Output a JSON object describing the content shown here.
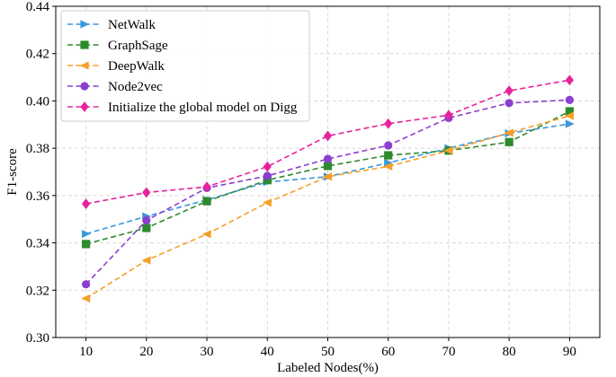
{
  "chart_data": {
    "type": "line",
    "title": "",
    "xlabel": "Labeled Nodes(%)",
    "ylabel": "F1-score",
    "x": [
      10,
      20,
      30,
      40,
      50,
      60,
      70,
      80,
      90
    ],
    "xticks": [
      "10",
      "20",
      "30",
      "40",
      "50",
      "60",
      "70",
      "80",
      "90"
    ],
    "yticks": [
      "0.30",
      "0.32",
      "0.34",
      "0.36",
      "0.38",
      "0.40",
      "0.42",
      "0.44"
    ],
    "xlim": [
      5,
      95
    ],
    "ylim": [
      0.3,
      0.44
    ],
    "grid": true,
    "legend_position": "top-left",
    "series": [
      {
        "name": "NetWalk",
        "color": "#3c97dc",
        "marker": "triangle-right",
        "values": [
          0.3438,
          0.3512,
          0.3582,
          0.3657,
          0.368,
          0.3738,
          0.38,
          0.3863,
          0.3903
        ]
      },
      {
        "name": "GraphSage",
        "color": "#2d8a2d",
        "marker": "square",
        "values": [
          0.3395,
          0.3463,
          0.3576,
          0.3665,
          0.3725,
          0.377,
          0.379,
          0.3826,
          0.3956
        ]
      },
      {
        "name": "DeepWalk",
        "color": "#f5a02a",
        "marker": "triangle-left",
        "values": [
          0.3165,
          0.3326,
          0.3437,
          0.357,
          0.368,
          0.3723,
          0.379,
          0.3865,
          0.3937
        ]
      },
      {
        "name": "Node2vec",
        "color": "#8a3fcf",
        "marker": "circle",
        "values": [
          0.3225,
          0.3495,
          0.3632,
          0.3683,
          0.3755,
          0.3812,
          0.3928,
          0.3991,
          0.4004
        ]
      },
      {
        "name": "Initialize the global model on Digg",
        "color": "#e7239b",
        "marker": "diamond",
        "values": [
          0.3565,
          0.3613,
          0.3637,
          0.3722,
          0.3852,
          0.3904,
          0.394,
          0.4043,
          0.4088
        ]
      }
    ]
  }
}
